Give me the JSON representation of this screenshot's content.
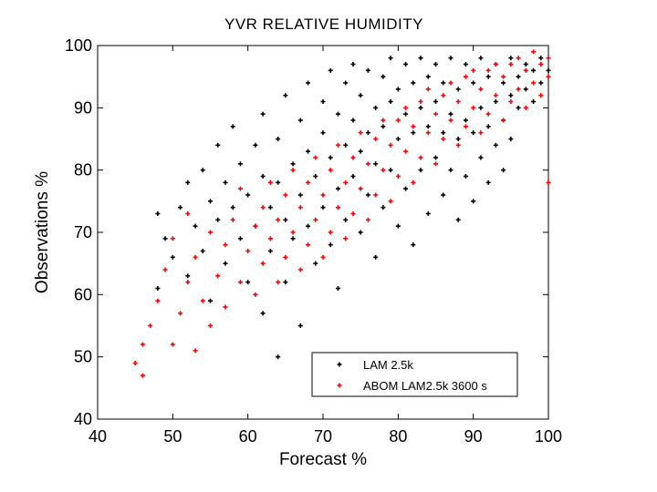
{
  "chart_data": {
    "type": "scatter",
    "title": "YVR  RELATIVE HUMIDITY",
    "xlabel": "Forecast %",
    "ylabel": "Observations %",
    "xlim": [
      40,
      100
    ],
    "ylim": [
      40,
      100
    ],
    "xticks": [
      "40",
      "50",
      "60",
      "70",
      "80",
      "90",
      "100"
    ],
    "yticks": [
      "40",
      "50",
      "60",
      "70",
      "80",
      "90",
      "100"
    ],
    "grid": false,
    "legend_position": "bottom-center",
    "series": [
      {
        "name": "LAM 2.5k",
        "color": "#000000",
        "marker": "+",
        "points": [
          [
            48,
            73
          ],
          [
            48,
            61
          ],
          [
            49,
            69
          ],
          [
            50,
            66
          ],
          [
            51,
            74
          ],
          [
            52,
            78
          ],
          [
            52,
            63
          ],
          [
            53,
            71
          ],
          [
            54,
            80
          ],
          [
            54,
            67
          ],
          [
            55,
            75
          ],
          [
            55,
            59
          ],
          [
            56,
            72
          ],
          [
            56,
            84
          ],
          [
            57,
            78
          ],
          [
            57,
            65
          ],
          [
            58,
            74
          ],
          [
            58,
            87
          ],
          [
            59,
            69
          ],
          [
            59,
            81
          ],
          [
            60,
            76
          ],
          [
            60,
            62
          ],
          [
            61,
            84
          ],
          [
            61,
            71
          ],
          [
            62,
            79
          ],
          [
            62,
            89
          ],
          [
            62,
            57
          ],
          [
            63,
            74
          ],
          [
            63,
            67
          ],
          [
            64,
            85
          ],
          [
            64,
            78
          ],
          [
            64,
            50
          ],
          [
            65,
            92
          ],
          [
            65,
            72
          ],
          [
            65,
            62
          ],
          [
            66,
            81
          ],
          [
            66,
            69
          ],
          [
            67,
            88
          ],
          [
            67,
            76
          ],
          [
            67,
            55
          ],
          [
            68,
            94
          ],
          [
            68,
            83
          ],
          [
            68,
            71
          ],
          [
            69,
            79
          ],
          [
            69,
            65
          ],
          [
            70,
            91
          ],
          [
            70,
            86
          ],
          [
            70,
            74
          ],
          [
            71,
            96
          ],
          [
            71,
            82
          ],
          [
            71,
            68
          ],
          [
            72,
            89
          ],
          [
            72,
            77
          ],
          [
            72,
            61
          ],
          [
            73,
            94
          ],
          [
            73,
            84
          ],
          [
            73,
            72
          ],
          [
            74,
            97
          ],
          [
            74,
            88
          ],
          [
            74,
            79
          ],
          [
            75,
            92
          ],
          [
            75,
            83
          ],
          [
            75,
            70
          ],
          [
            76,
            96
          ],
          [
            76,
            86
          ],
          [
            76,
            76
          ],
          [
            77,
            90
          ],
          [
            77,
            81
          ],
          [
            77,
            66
          ],
          [
            78,
            95
          ],
          [
            78,
            87
          ],
          [
            78,
            74
          ],
          [
            79,
            98
          ],
          [
            79,
            91
          ],
          [
            79,
            80
          ],
          [
            80,
            93
          ],
          [
            80,
            85
          ],
          [
            80,
            71
          ],
          [
            81,
            97
          ],
          [
            81,
            89
          ],
          [
            81,
            77
          ],
          [
            82,
            94
          ],
          [
            82,
            86
          ],
          [
            82,
            68
          ],
          [
            83,
            98
          ],
          [
            83,
            90
          ],
          [
            83,
            80
          ],
          [
            84,
            95
          ],
          [
            84,
            87
          ],
          [
            84,
            73
          ],
          [
            85,
            97
          ],
          [
            85,
            91
          ],
          [
            85,
            82
          ],
          [
            86,
            94
          ],
          [
            86,
            86
          ],
          [
            86,
            76
          ],
          [
            87,
            98
          ],
          [
            87,
            89
          ],
          [
            87,
            80
          ],
          [
            88,
            93
          ],
          [
            88,
            85
          ],
          [
            88,
            72
          ],
          [
            89,
            97
          ],
          [
            89,
            88
          ],
          [
            89,
            79
          ],
          [
            90,
            94
          ],
          [
            90,
            86
          ],
          [
            90,
            75
          ],
          [
            91,
            98
          ],
          [
            91,
            90
          ],
          [
            91,
            82
          ],
          [
            92,
            95
          ],
          [
            92,
            87
          ],
          [
            92,
            78
          ],
          [
            93,
            97
          ],
          [
            93,
            91
          ],
          [
            93,
            84
          ],
          [
            94,
            94
          ],
          [
            94,
            88
          ],
          [
            94,
            80
          ],
          [
            95,
            98
          ],
          [
            95,
            92
          ],
          [
            95,
            85
          ],
          [
            96,
            95
          ],
          [
            96,
            90
          ],
          [
            97,
            97
          ],
          [
            97,
            93
          ],
          [
            98,
            96
          ],
          [
            98,
            91
          ],
          [
            99,
            98
          ],
          [
            99,
            94
          ],
          [
            100,
            96
          ]
        ]
      },
      {
        "name": "ABOM  LAM2.5k 3600 s",
        "color": "#ff0000",
        "marker": "+",
        "points": [
          [
            45,
            49
          ],
          [
            46,
            47
          ],
          [
            46,
            52
          ],
          [
            47,
            55
          ],
          [
            48,
            59
          ],
          [
            49,
            64
          ],
          [
            50,
            52
          ],
          [
            50,
            69
          ],
          [
            51,
            57
          ],
          [
            52,
            62
          ],
          [
            52,
            73
          ],
          [
            53,
            51
          ],
          [
            53,
            66
          ],
          [
            54,
            59
          ],
          [
            55,
            70
          ],
          [
            55,
            55
          ],
          [
            56,
            63
          ],
          [
            57,
            68
          ],
          [
            57,
            58
          ],
          [
            58,
            72
          ],
          [
            59,
            62
          ],
          [
            59,
            77
          ],
          [
            60,
            67
          ],
          [
            61,
            71
          ],
          [
            61,
            60
          ],
          [
            62,
            74
          ],
          [
            62,
            65
          ],
          [
            63,
            69
          ],
          [
            63,
            78
          ],
          [
            64,
            62
          ],
          [
            64,
            72
          ],
          [
            65,
            66
          ],
          [
            65,
            76
          ],
          [
            66,
            70
          ],
          [
            66,
            80
          ],
          [
            67,
            64
          ],
          [
            67,
            74
          ],
          [
            68,
            68
          ],
          [
            68,
            78
          ],
          [
            69,
            72
          ],
          [
            69,
            82
          ],
          [
            70,
            66
          ],
          [
            70,
            76
          ],
          [
            71,
            70
          ],
          [
            71,
            80
          ],
          [
            72,
            74
          ],
          [
            72,
            84
          ],
          [
            73,
            69
          ],
          [
            73,
            78
          ],
          [
            74,
            73
          ],
          [
            74,
            82
          ],
          [
            75,
            77
          ],
          [
            75,
            86
          ],
          [
            76,
            72
          ],
          [
            76,
            81
          ],
          [
            77,
            76
          ],
          [
            77,
            85
          ],
          [
            78,
            80
          ],
          [
            78,
            88
          ],
          [
            79,
            75
          ],
          [
            79,
            84
          ],
          [
            80,
            79
          ],
          [
            80,
            88
          ],
          [
            81,
            83
          ],
          [
            81,
            90
          ],
          [
            82,
            78
          ],
          [
            82,
            87
          ],
          [
            83,
            82
          ],
          [
            83,
            91
          ],
          [
            84,
            86
          ],
          [
            84,
            93
          ],
          [
            85,
            81
          ],
          [
            85,
            89
          ],
          [
            86,
            85
          ],
          [
            86,
            92
          ],
          [
            87,
            88
          ],
          [
            87,
            94
          ],
          [
            88,
            84
          ],
          [
            88,
            91
          ],
          [
            89,
            87
          ],
          [
            89,
            95
          ],
          [
            90,
            90
          ],
          [
            90,
            96
          ],
          [
            91,
            86
          ],
          [
            91,
            93
          ],
          [
            92,
            89
          ],
          [
            92,
            96
          ],
          [
            93,
            92
          ],
          [
            93,
            97
          ],
          [
            94,
            88
          ],
          [
            94,
            95
          ],
          [
            95,
            91
          ],
          [
            95,
            97
          ],
          [
            96,
            93
          ],
          [
            96,
            98
          ],
          [
            97,
            90
          ],
          [
            97,
            96
          ],
          [
            98,
            94
          ],
          [
            98,
            99
          ],
          [
            99,
            92
          ],
          [
            99,
            97
          ],
          [
            100,
            95
          ],
          [
            100,
            98
          ],
          [
            100,
            78
          ]
        ]
      }
    ]
  }
}
